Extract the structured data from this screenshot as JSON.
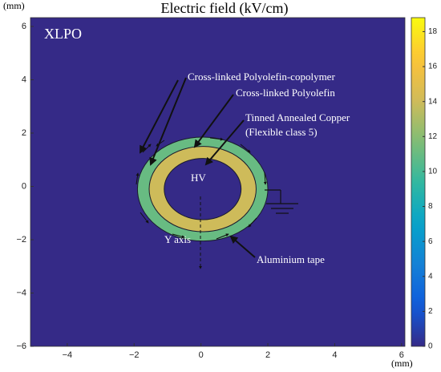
{
  "chart_data": {
    "type": "field-map",
    "title": "Electric field (kV/cm)",
    "x_unit": "(mm)",
    "y_unit": "(mm)",
    "label": "XLPO",
    "annotations": [
      "Cross-linked Polyolefin-copolymer",
      "Cross-linked Polyolefin",
      "Tinned Annealed Copper",
      "(Flexible class 5)",
      "HV",
      "Y axis",
      "Aluminium tape"
    ],
    "xlim": [
      -5.1,
      6.1
    ],
    "ylim": [
      -6,
      6.33
    ],
    "xticks": [
      {
        "value": -4,
        "label": "−4"
      },
      {
        "value": -2,
        "label": "−2"
      },
      0,
      2,
      4,
      6
    ],
    "yticks": [
      {
        "value": -6,
        "label": "−6"
      },
      {
        "value": -4,
        "label": "−4"
      },
      {
        "value": -2,
        "label": "−2"
      },
      0,
      2,
      4,
      6
    ],
    "clim": [
      0,
      18.8
    ],
    "cticks": [
      0,
      2,
      4,
      6,
      8,
      10,
      12,
      14,
      16,
      18
    ],
    "colormap": "parula",
    "background": 0,
    "center": [
      0.05,
      -0.1
    ],
    "layers": [
      {
        "r": 1.95,
        "value": 11
      },
      {
        "r": 1.6,
        "value": 14
      },
      {
        "r": 1.15,
        "value": 0
      }
    ]
  }
}
